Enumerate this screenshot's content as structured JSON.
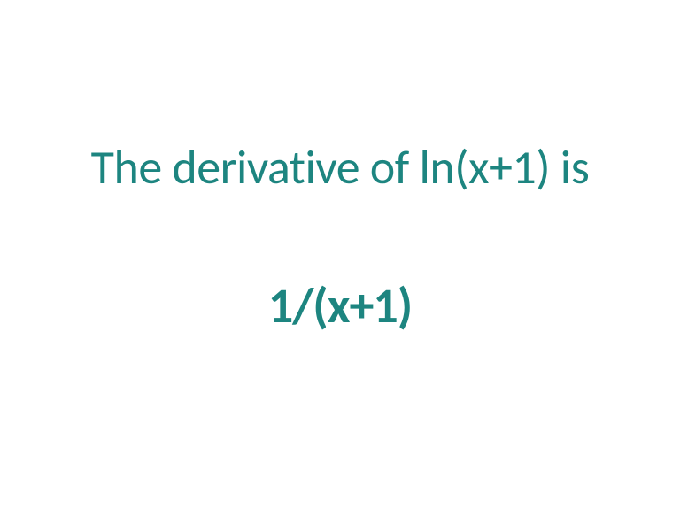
{
  "slide": {
    "statement": "The derivative of ln(x+1) is",
    "answer": "1/(x+1)",
    "text_color": "#1d8580",
    "background_color": "#ffffff",
    "statement_fontsize": 54,
    "statement_fontweight": 400,
    "answer_fontsize": 56,
    "answer_fontweight": 700,
    "font_family": "Calibri"
  }
}
